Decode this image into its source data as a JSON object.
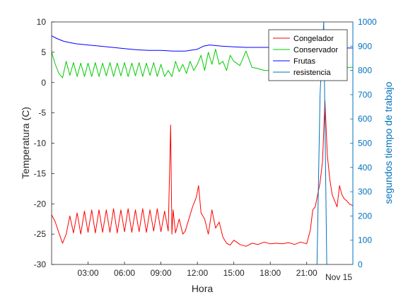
{
  "chart_data": {
    "type": "line",
    "xlabel": "Hora",
    "ylabel_left": "Temperatura (C)",
    "ylabel_right": "segundos tiempo de trabajo",
    "x_unit": "hours",
    "xlim": [
      0,
      24.8
    ],
    "ylim_left": [
      -30,
      10
    ],
    "ylim_right": [
      0,
      1000
    ],
    "x_ticks": [
      {
        "value": 3,
        "label": "03:00"
      },
      {
        "value": 6,
        "label": "06:00"
      },
      {
        "value": 9,
        "label": "09:00"
      },
      {
        "value": 12,
        "label": "12:00"
      },
      {
        "value": 15,
        "label": "15:00"
      },
      {
        "value": 18,
        "label": "18:00"
      },
      {
        "value": 21,
        "label": "21:00"
      }
    ],
    "x_secondary_label": "Nov 15",
    "y_left_ticks": [
      "10",
      "5",
      "0",
      "-5",
      "-10",
      "-15",
      "-20",
      "-25",
      "-30"
    ],
    "y_right_ticks": [
      "1000",
      "900",
      "800",
      "700",
      "600",
      "500",
      "400",
      "300",
      "200",
      "100",
      "0"
    ],
    "legend_position": "top-right",
    "grid": false,
    "series": [
      {
        "name": "Congelador",
        "color": "#FF0000",
        "axis": "left",
        "x": [
          0,
          0.3,
          0.6,
          0.9,
          1.2,
          1.5,
          1.8,
          2.1,
          2.4,
          2.7,
          3.0,
          3.3,
          3.6,
          3.9,
          4.2,
          4.5,
          4.8,
          5.1,
          5.4,
          5.7,
          6.0,
          6.3,
          6.6,
          6.9,
          7.2,
          7.5,
          7.8,
          8.1,
          8.4,
          8.7,
          9.0,
          9.3,
          9.6,
          9.8,
          9.9,
          10.0,
          10.2,
          10.5,
          10.8,
          11.0,
          11.3,
          11.6,
          11.9,
          12.1,
          12.3,
          12.6,
          12.9,
          13.2,
          13.5,
          13.8,
          14.1,
          14.4,
          14.7,
          15.0,
          15.5,
          16.0,
          16.5,
          17.0,
          17.5,
          18.0,
          18.5,
          19.0,
          19.5,
          20.0,
          20.5,
          21.0,
          21.3,
          21.5,
          21.7,
          21.9,
          22.1,
          22.3,
          22.5,
          22.7,
          22.9,
          23.1,
          23.3,
          23.5,
          23.7,
          23.9,
          24.1,
          24.3,
          24.5,
          24.8
        ],
        "values": [
          -21.8,
          -23.0,
          -24.8,
          -26.5,
          -25.0,
          -22.0,
          -24.8,
          -21.5,
          -25.0,
          -21.2,
          -24.7,
          -21.0,
          -24.8,
          -21.0,
          -24.7,
          -21.0,
          -24.7,
          -20.8,
          -24.8,
          -21.0,
          -24.6,
          -20.8,
          -24.7,
          -21.0,
          -24.6,
          -20.8,
          -24.7,
          -21.0,
          -24.5,
          -20.8,
          -24.6,
          -21.2,
          -24.5,
          -7.0,
          -25.0,
          -21.0,
          -24.8,
          -22.5,
          -25.0,
          -24.5,
          -22.5,
          -20.5,
          -19.0,
          -17.0,
          -21.5,
          -22.5,
          -25.0,
          -21.0,
          -24.0,
          -23.0,
          -25.5,
          -26.5,
          -26.8,
          -26.0,
          -26.7,
          -27.0,
          -26.5,
          -26.7,
          -26.3,
          -26.6,
          -26.5,
          -26.6,
          -26.4,
          -26.7,
          -26.3,
          -26.6,
          -24.3,
          -21.0,
          -20.5,
          -18.5,
          -16.5,
          -13.0,
          -3.0,
          -12.0,
          -16.0,
          -18.5,
          -19.5,
          -20.5,
          -17.0,
          -18.5,
          -19.2,
          -19.5,
          -20.0,
          -20.3
        ]
      },
      {
        "name": "Conservador",
        "color": "#00CC00",
        "axis": "left",
        "x": [
          0,
          0.3,
          0.6,
          0.9,
          1.2,
          1.5,
          1.8,
          2.1,
          2.4,
          2.7,
          3.0,
          3.3,
          3.6,
          3.9,
          4.2,
          4.5,
          4.8,
          5.1,
          5.4,
          5.7,
          6.0,
          6.3,
          6.6,
          6.9,
          7.2,
          7.5,
          7.8,
          8.1,
          8.4,
          8.7,
          9.0,
          9.3,
          9.6,
          9.9,
          10.2,
          10.5,
          10.8,
          11.1,
          11.4,
          11.7,
          12.0,
          12.3,
          12.6,
          12.9,
          13.2,
          13.5,
          13.8,
          14.1,
          14.4,
          14.7,
          15.0,
          15.5,
          16.0,
          16.5,
          17.0,
          17.5,
          18.0,
          18.5,
          19.0,
          19.5,
          20.0,
          20.5,
          21.0,
          21.5,
          22.0,
          22.5,
          23.0,
          23.5,
          24.0,
          24.5,
          24.8
        ],
        "values": [
          5.0,
          3.0,
          1.5,
          0.8,
          3.5,
          1.2,
          3.3,
          1.0,
          3.2,
          1.0,
          3.2,
          1.0,
          3.3,
          1.0,
          3.2,
          1.1,
          3.3,
          1.0,
          3.2,
          1.1,
          3.3,
          1.0,
          3.2,
          1.1,
          3.3,
          1.0,
          3.2,
          1.2,
          3.3,
          1.0,
          3.0,
          1.0,
          2.0,
          1.0,
          3.5,
          1.8,
          3.0,
          1.5,
          3.5,
          2.0,
          3.0,
          4.5,
          2.0,
          5.0,
          3.0,
          5.5,
          3.0,
          3.5,
          2.0,
          4.5,
          3.5,
          2.8,
          5.2,
          2.5,
          2.3,
          2.0,
          2.0,
          2.0,
          2.0,
          2.0,
          2.0,
          2.0,
          2.2,
          2.0,
          2.0,
          2.2,
          2.0,
          2.5,
          2.3,
          2.5,
          2.5
        ]
      },
      {
        "name": "Frutas",
        "color": "#0000FF",
        "axis": "left",
        "x": [
          0,
          0.5,
          1,
          1.5,
          2,
          3,
          4,
          5,
          6,
          7,
          8,
          9,
          10,
          11,
          12,
          12.5,
          13,
          14,
          15,
          16,
          17,
          18,
          19,
          20,
          21,
          22,
          22.5,
          23,
          24,
          24.8
        ],
        "values": [
          7.7,
          7.2,
          6.8,
          6.6,
          6.4,
          6.2,
          6.0,
          5.8,
          5.6,
          5.4,
          5.3,
          5.3,
          5.2,
          5.2,
          5.5,
          6.0,
          6.2,
          6.0,
          5.9,
          5.8,
          5.8,
          5.8,
          5.8,
          5.7,
          5.7,
          5.6,
          5.8,
          5.8,
          5.7,
          5.7
        ]
      },
      {
        "name": "resistencia",
        "color": "#0072BD",
        "axis": "right",
        "x": [
          21.85,
          22.1,
          22.4,
          22.65
        ],
        "values": [
          0,
          700,
          1000,
          0
        ]
      }
    ]
  }
}
